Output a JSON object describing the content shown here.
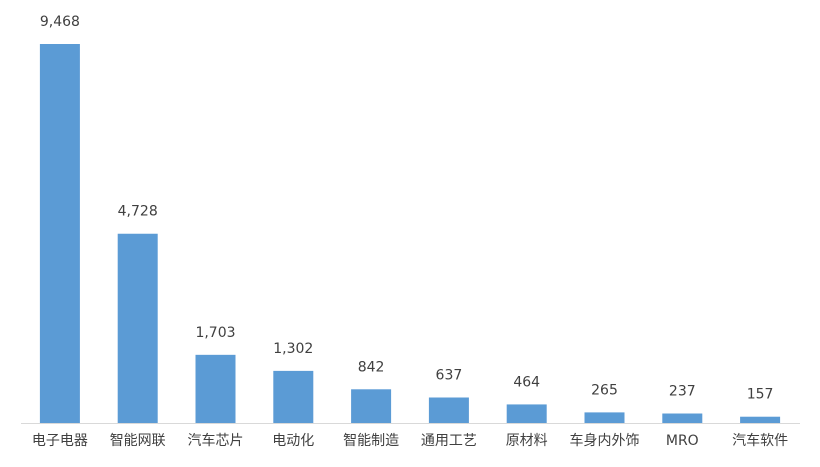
{
  "chart_data": {
    "type": "bar",
    "categories": [
      "电子电器",
      "智能网联",
      "汽车芯片",
      "电动化",
      "智能制造",
      "通用工艺",
      "原材料",
      "车身内外饰",
      "MRO",
      "汽车软件"
    ],
    "values": [
      9468,
      4728,
      1703,
      1302,
      842,
      637,
      464,
      265,
      237,
      157
    ],
    "value_labels": [
      "9,468",
      "4,728",
      "1,703",
      "1,302",
      "842",
      "637",
      "464",
      "265",
      "237",
      "157"
    ],
    "color": "#5b9bd5"
  }
}
